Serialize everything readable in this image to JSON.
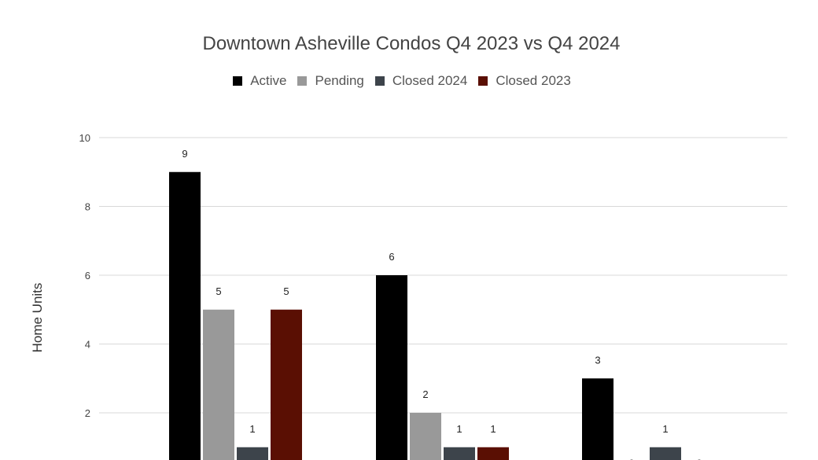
{
  "chart_data": {
    "type": "bar",
    "title": "Downtown Asheville Condos Q4 2023 vs Q4 2024",
    "xlabel": "",
    "ylabel": "Home Units",
    "ylim": [
      0,
      10
    ],
    "yticks": [
      2,
      4,
      6,
      8,
      10
    ],
    "grid": true,
    "legend_position": "top",
    "categories": [
      "",
      "",
      ""
    ],
    "series": [
      {
        "name": "Active",
        "color": "#000000",
        "values": [
          9,
          6,
          3
        ]
      },
      {
        "name": "Pending",
        "color": "#999999",
        "values": [
          5,
          2,
          0
        ]
      },
      {
        "name": "Closed 2024",
        "color": "#3d444b",
        "values": [
          1,
          1,
          1
        ]
      },
      {
        "name": "Closed 2023",
        "color": "#5a0f03",
        "values": [
          5,
          1,
          0
        ]
      }
    ]
  }
}
